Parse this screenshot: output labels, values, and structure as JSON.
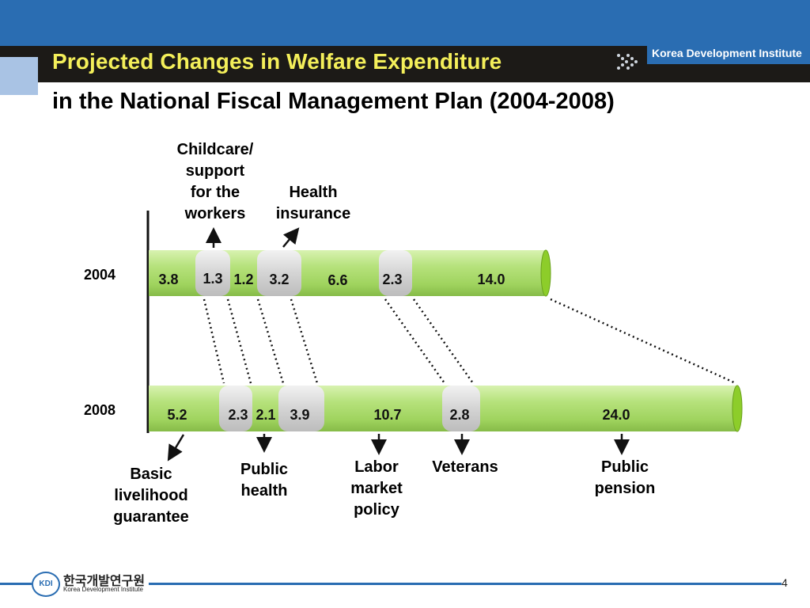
{
  "header": {
    "title": "Projected Changes in Welfare Expenditure",
    "subtitle": "in the National Fiscal Management Plan (2004-2008)",
    "brand": "Korea Development Institute"
  },
  "years": {
    "y2004": "2004",
    "y2008": "2008"
  },
  "bar2004": {
    "values": [
      "3.8",
      "1.3",
      "1.2",
      "3.2",
      "6.6",
      "2.3",
      "14.0"
    ]
  },
  "bar2008": {
    "values": [
      "5.2",
      "2.3",
      "2.1",
      "3.9",
      "10.7",
      "2.8",
      "24.0"
    ]
  },
  "categories": {
    "childcare": [
      "Childcare/",
      "support",
      "for the",
      "workers"
    ],
    "health_insurance": [
      "Health",
      "insurance"
    ],
    "basic_livelihood": [
      "Basic",
      "livelihood",
      "guarantee"
    ],
    "public_health": [
      "Public",
      "health"
    ],
    "labor_market": [
      "Labor",
      "market",
      "policy"
    ],
    "veterans": "Veterans",
    "public_pension": [
      "Public",
      "pension"
    ]
  },
  "footer": {
    "logo": "KDI",
    "org_korean": "한국개발연구원",
    "org_english": "Korea Development Institute",
    "page": "4"
  },
  "colors": {
    "header_blue": "#2a6db2",
    "title_yellow": "#f4ef5a",
    "bar_green": "#a8dd6a",
    "segment_gray": "#d9d9d9"
  }
}
